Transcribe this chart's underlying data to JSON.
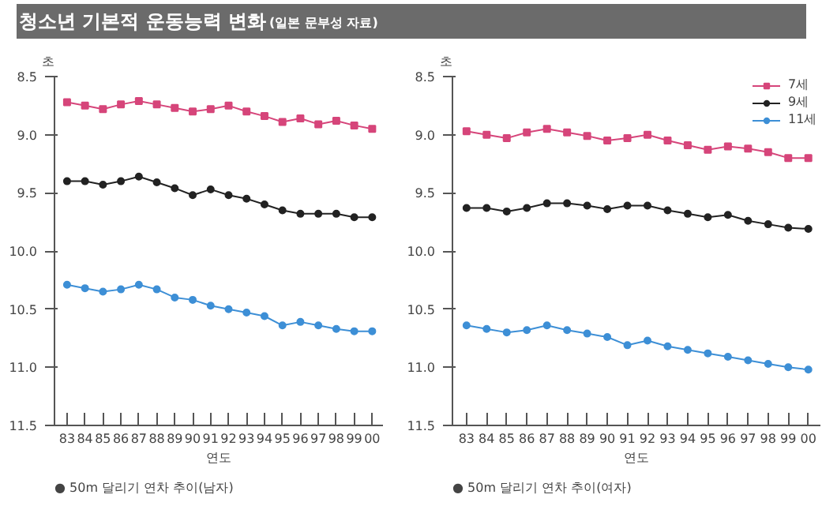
{
  "chart_data": [
    {
      "type": "line",
      "title": "청소년 기본적 운동능력 변화",
      "subtitle": "(일본 문부성 자료)",
      "xlabel": "연도",
      "ylabel": "초",
      "categories": [
        "83",
        "84",
        "85",
        "86",
        "87",
        "88",
        "89",
        "90",
        "91",
        "92",
        "93",
        "94",
        "95",
        "96",
        "97",
        "98",
        "99",
        "00"
      ],
      "ylim": [
        11.5,
        8.5
      ],
      "yticks": [
        8.5,
        {
          "value": 9.0,
          "label": "9.0"
        },
        9.5,
        {
          "value": 10.0,
          "label": "10.0"
        },
        10.5,
        {
          "value": 11.0,
          "label": "11.0"
        },
        11.5
      ],
      "grid": false,
      "series": [
        {
          "color": "#d6457a",
          "marker": "square",
          "values": [
            8.72,
            8.75,
            8.78,
            8.74,
            8.71,
            8.74,
            8.77,
            8.8,
            8.78,
            8.75,
            8.8,
            8.84,
            8.89,
            8.86,
            8.91,
            8.88,
            8.92,
            8.95
          ]
        },
        {
          "color": "#222222",
          "marker": "circle",
          "values": [
            9.4,
            9.4,
            9.43,
            9.4,
            9.36,
            9.41,
            9.46,
            9.52,
            9.47,
            9.52,
            9.55,
            9.6,
            9.65,
            9.68,
            9.68,
            9.68,
            9.71,
            9.71
          ]
        },
        {
          "color": "#3d8fd6",
          "marker": "circle",
          "values": [
            10.29,
            10.32,
            10.35,
            10.33,
            10.29,
            10.33,
            10.4,
            10.42,
            10.47,
            10.5,
            10.53,
            10.56,
            10.64,
            10.61,
            10.64,
            10.67,
            10.69,
            10.69
          ]
        }
      ],
      "annotations": [
        "● 50m 달리기 연차 추이(남자)"
      ]
    },
    {
      "type": "line",
      "xlabel": "연도",
      "ylabel": "초",
      "categories": [
        "83",
        "84",
        "85",
        "86",
        "87",
        "88",
        "89",
        "90",
        "91",
        "92",
        "93",
        "94",
        "95",
        "96",
        "97",
        "98",
        "99",
        "00"
      ],
      "ylim": [
        11.5,
        8.5
      ],
      "yticks": [
        8.5,
        {
          "value": 9.0,
          "label": "9.0"
        },
        9.5,
        {
          "value": 10.0,
          "label": "10.0"
        },
        10.5,
        {
          "value": 11.0,
          "label": "11.0"
        },
        11.5
      ],
      "grid": false,
      "legend": "top right",
      "series": [
        {
          "name": "7세",
          "color": "#d6457a",
          "marker": "square",
          "values": [
            8.97,
            9.0,
            9.03,
            8.98,
            8.95,
            8.98,
            9.01,
            9.05,
            9.03,
            9.0,
            9.05,
            9.09,
            9.13,
            9.1,
            9.12,
            9.15,
            9.2,
            9.2
          ]
        },
        {
          "name": "9세",
          "color": "#222222",
          "marker": "circle",
          "values": [
            9.63,
            9.63,
            9.66,
            9.63,
            9.59,
            9.59,
            9.61,
            9.64,
            9.61,
            9.61,
            9.65,
            9.68,
            9.71,
            9.69,
            9.74,
            9.77,
            9.8,
            9.81
          ]
        },
        {
          "name": "11세",
          "color": "#3d8fd6",
          "marker": "circle",
          "values": [
            10.64,
            10.67,
            10.7,
            10.68,
            10.64,
            10.68,
            10.71,
            10.74,
            10.81,
            10.77,
            10.82,
            10.85,
            10.88,
            10.91,
            10.94,
            10.97,
            11.0,
            11.02
          ]
        }
      ],
      "annotations": [
        "● 50m 달리기 연차 추이(여자)"
      ]
    }
  ]
}
